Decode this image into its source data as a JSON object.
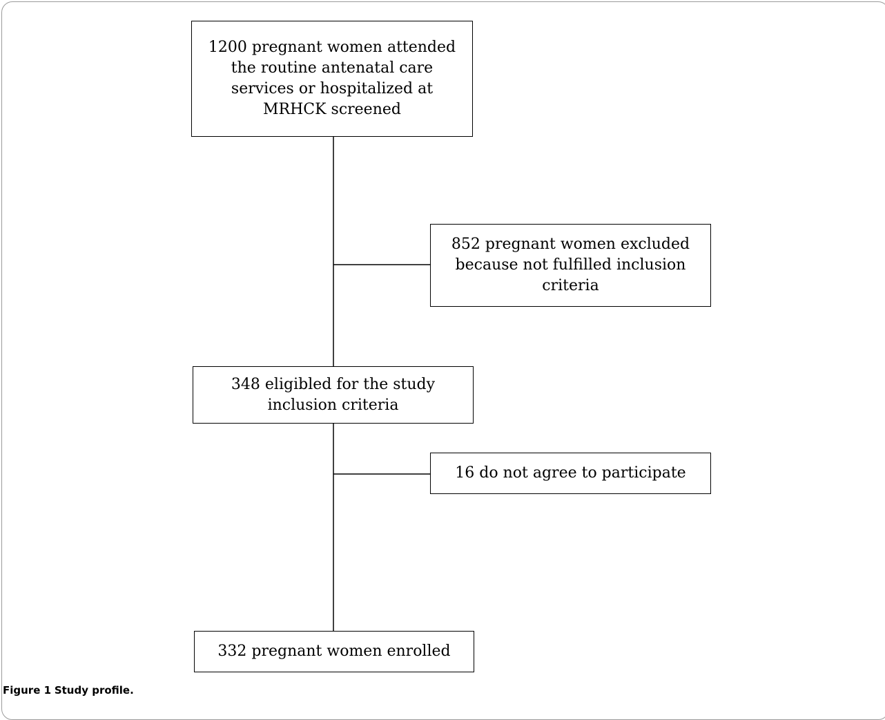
{
  "boxes": {
    "screened": "1200 pregnant women attended the routine antenatal care services or hospitalized at MRHCK screened",
    "excluded": "852 pregnant women excluded because not fulfilled inclusion criteria",
    "eligible": "348 eligibled for the study inclusion criteria",
    "declined": "16 do not agree to participate",
    "enrolled": "332 pregnant women enrolled"
  },
  "caption": {
    "label": "Figure 1",
    "text": "Study profile."
  }
}
